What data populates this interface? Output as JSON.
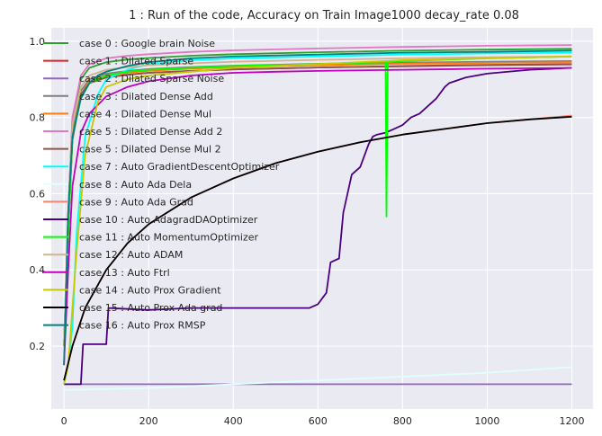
{
  "chart_data": {
    "type": "line",
    "title": "1 : Run of the code, Accuracy on Train Image1000 decay_rate 0.08",
    "xlabel": "",
    "ylabel": "",
    "xlim": [
      -30,
      1250
    ],
    "ylim": [
      0.035,
      1.035
    ],
    "xticks": [
      0,
      200,
      400,
      600,
      800,
      1000,
      1200
    ],
    "yticks": [
      0.2,
      0.4,
      0.6,
      0.8,
      1.0
    ],
    "xtick_labels": [
      "0",
      "200",
      "400",
      "600",
      "800",
      "1000",
      "1200"
    ],
    "ytick_labels": [
      "0.2",
      "0.4",
      "0.6",
      "0.8",
      "1.0"
    ],
    "grid": true,
    "legend_position": "upper-left",
    "series": [
      {
        "name": "case 0 : Google brain Noise",
        "color": "#2ca02c",
        "x": [
          0,
          10,
          20,
          40,
          60,
          100,
          150,
          200,
          300,
          400,
          600,
          800,
          1000,
          1200
        ],
        "y": [
          0.2,
          0.55,
          0.8,
          0.9,
          0.93,
          0.945,
          0.952,
          0.956,
          0.962,
          0.966,
          0.971,
          0.975,
          0.978,
          0.98
        ]
      },
      {
        "name": "case 1 : Dilated Sparse",
        "color": "#d62728",
        "x": [
          0,
          10,
          20,
          40,
          60,
          100,
          150,
          200,
          300,
          400,
          600,
          800,
          1000,
          1200
        ],
        "y": [
          0.2,
          0.5,
          0.75,
          0.86,
          0.89,
          0.905,
          0.912,
          0.917,
          0.922,
          0.926,
          0.931,
          0.935,
          0.938,
          0.94
        ]
      },
      {
        "name": "case 2 : Dilated Sparse Noise",
        "color": "#9467bd",
        "x": [
          0,
          100,
          200,
          400,
          600,
          800,
          1000,
          1200
        ],
        "y": [
          0.1,
          0.1,
          0.1,
          0.1,
          0.1,
          0.1,
          0.1,
          0.1
        ]
      },
      {
        "name": "case 3 : Dilated Dense Add",
        "color": "#7f7f7f",
        "x": [
          0,
          10,
          20,
          40,
          60,
          100,
          150,
          200,
          300,
          400,
          600,
          800,
          1000,
          1200
        ],
        "y": [
          0.2,
          0.5,
          0.76,
          0.87,
          0.9,
          0.915,
          0.922,
          0.927,
          0.932,
          0.936,
          0.941,
          0.944,
          0.946,
          0.948
        ]
      },
      {
        "name": "case 4 : Dilated Dense Mul",
        "color": "#ff7f0e",
        "x": [
          0,
          10,
          20,
          40,
          60,
          100,
          150,
          200,
          300,
          400,
          600,
          800,
          1000,
          1200
        ],
        "y": [
          0.2,
          0.5,
          0.75,
          0.86,
          0.895,
          0.91,
          0.917,
          0.922,
          0.928,
          0.932,
          0.937,
          0.941,
          0.943,
          0.945
        ]
      },
      {
        "name": "case 5 : Dilated Dense Add 2",
        "color": "#e377c2",
        "x": [
          0,
          10,
          20,
          40,
          60,
          100,
          150,
          200,
          300,
          400,
          600,
          800,
          1000,
          1200
        ],
        "y": [
          0.2,
          0.55,
          0.8,
          0.91,
          0.94,
          0.955,
          0.962,
          0.966,
          0.972,
          0.976,
          0.981,
          0.985,
          0.988,
          0.99
        ]
      },
      {
        "name": "case 5 : Dilated Dense Mul 2",
        "color": "#8c564b",
        "x": [
          0,
          10,
          20,
          40,
          60,
          100,
          150,
          200,
          300,
          400,
          600,
          800,
          1000,
          1200
        ],
        "y": [
          0.2,
          0.5,
          0.74,
          0.86,
          0.89,
          0.905,
          0.912,
          0.917,
          0.922,
          0.926,
          0.931,
          0.934,
          0.937,
          0.939
        ]
      },
      {
        "name": "case 7 : Auto GradientDescentOptimizer",
        "color": "#00ffff",
        "x": [
          0,
          10,
          20,
          30,
          50,
          80,
          100,
          150,
          200,
          300,
          400,
          600,
          800,
          1000,
          1200
        ],
        "y": [
          0.1,
          0.15,
          0.25,
          0.5,
          0.75,
          0.86,
          0.9,
          0.925,
          0.94,
          0.95,
          0.955,
          0.96,
          0.965,
          0.968,
          0.97
        ]
      },
      {
        "name": "case 8 : Auto Ada Dela",
        "color": "#e0ffff",
        "x": [
          0,
          200,
          400,
          600,
          800,
          1000,
          1200
        ],
        "y": [
          0.085,
          0.09,
          0.1,
          0.11,
          0.12,
          0.13,
          0.145
        ]
      },
      {
        "name": "case 9 : Auto Ada Grad",
        "color": "#fa8072",
        "x": [
          0,
          20,
          50,
          100,
          150,
          200,
          300,
          400,
          500,
          600,
          700,
          800,
          900,
          1000,
          1100,
          1200
        ],
        "y": [
          0.11,
          0.2,
          0.3,
          0.4,
          0.47,
          0.52,
          0.59,
          0.64,
          0.68,
          0.71,
          0.735,
          0.755,
          0.77,
          0.785,
          0.795,
          0.805
        ]
      },
      {
        "name": "case 10 : Auto AdagradDAOptimizer",
        "color": "#4b0082",
        "x": [
          0,
          40,
          45,
          100,
          105,
          200,
          300,
          400,
          500,
          580,
          600,
          620,
          630,
          650,
          660,
          670,
          680,
          700,
          720,
          730,
          740,
          760,
          780,
          800,
          820,
          840,
          860,
          880,
          900,
          910,
          950,
          1000,
          1100,
          1200
        ],
        "y": [
          0.1,
          0.1,
          0.205,
          0.205,
          0.3,
          0.295,
          0.3,
          0.3,
          0.3,
          0.3,
          0.31,
          0.34,
          0.42,
          0.43,
          0.55,
          0.6,
          0.65,
          0.67,
          0.73,
          0.75,
          0.755,
          0.76,
          0.77,
          0.78,
          0.8,
          0.81,
          0.83,
          0.85,
          0.88,
          0.89,
          0.905,
          0.915,
          0.925,
          0.93
        ]
      },
      {
        "name": "case 11 : Auto MomentumOptimizer",
        "color": "#00ff00",
        "x": [
          0,
          10,
          20,
          40,
          60,
          100,
          150,
          200,
          300,
          400,
          600,
          760,
          762,
          765,
          800,
          1000,
          1200
        ],
        "y": [
          0.2,
          0.5,
          0.75,
          0.85,
          0.89,
          0.91,
          0.92,
          0.925,
          0.93,
          0.935,
          0.94,
          0.945,
          0.54,
          0.945,
          0.948,
          0.955,
          0.96
        ]
      },
      {
        "name": "case 12 : Auto ADAM",
        "color": "#d2b48c",
        "x": [
          0,
          10,
          20,
          40,
          60,
          100,
          150,
          200,
          300,
          400,
          600,
          800,
          1000,
          1200
        ],
        "y": [
          0.2,
          0.55,
          0.78,
          0.88,
          0.91,
          0.925,
          0.932,
          0.937,
          0.942,
          0.946,
          0.951,
          0.955,
          0.958,
          0.96
        ]
      },
      {
        "name": "case 13 : Auto Ftrl",
        "color": "#c000c0",
        "x": [
          0,
          10,
          20,
          40,
          60,
          100,
          150,
          200,
          300,
          400,
          500,
          600,
          800,
          1000,
          1200
        ],
        "y": [
          0.15,
          0.4,
          0.62,
          0.76,
          0.81,
          0.855,
          0.88,
          0.895,
          0.91,
          0.917,
          0.92,
          0.922,
          0.925,
          0.928,
          0.93
        ]
      },
      {
        "name": "case 14 : Auto Prox Gradient",
        "color": "#c8c800",
        "x": [
          0,
          10,
          20,
          30,
          50,
          80,
          100,
          150,
          200,
          300,
          400,
          600,
          800,
          1000,
          1200
        ],
        "y": [
          0.1,
          0.15,
          0.3,
          0.45,
          0.7,
          0.84,
          0.88,
          0.9,
          0.91,
          0.92,
          0.93,
          0.94,
          0.95,
          0.955,
          0.96
        ]
      },
      {
        "name": "case 15 : Auto Prox Ada grad",
        "color": "#000000",
        "x": [
          0,
          20,
          50,
          100,
          150,
          200,
          300,
          400,
          500,
          600,
          700,
          800,
          900,
          1000,
          1100,
          1200
        ],
        "y": [
          0.11,
          0.2,
          0.3,
          0.4,
          0.47,
          0.52,
          0.59,
          0.64,
          0.68,
          0.71,
          0.735,
          0.755,
          0.77,
          0.785,
          0.795,
          0.802
        ]
      },
      {
        "name": "case 16 : Auto Prox RMSP",
        "color": "#008080",
        "x": [
          0,
          10,
          20,
          40,
          60,
          80,
          100,
          150,
          200,
          300,
          400,
          600,
          800,
          1000,
          1200
        ],
        "y": [
          0.15,
          0.55,
          0.75,
          0.85,
          0.89,
          0.91,
          0.92,
          0.935,
          0.945,
          0.955,
          0.96,
          0.965,
          0.97,
          0.972,
          0.975
        ]
      }
    ]
  }
}
